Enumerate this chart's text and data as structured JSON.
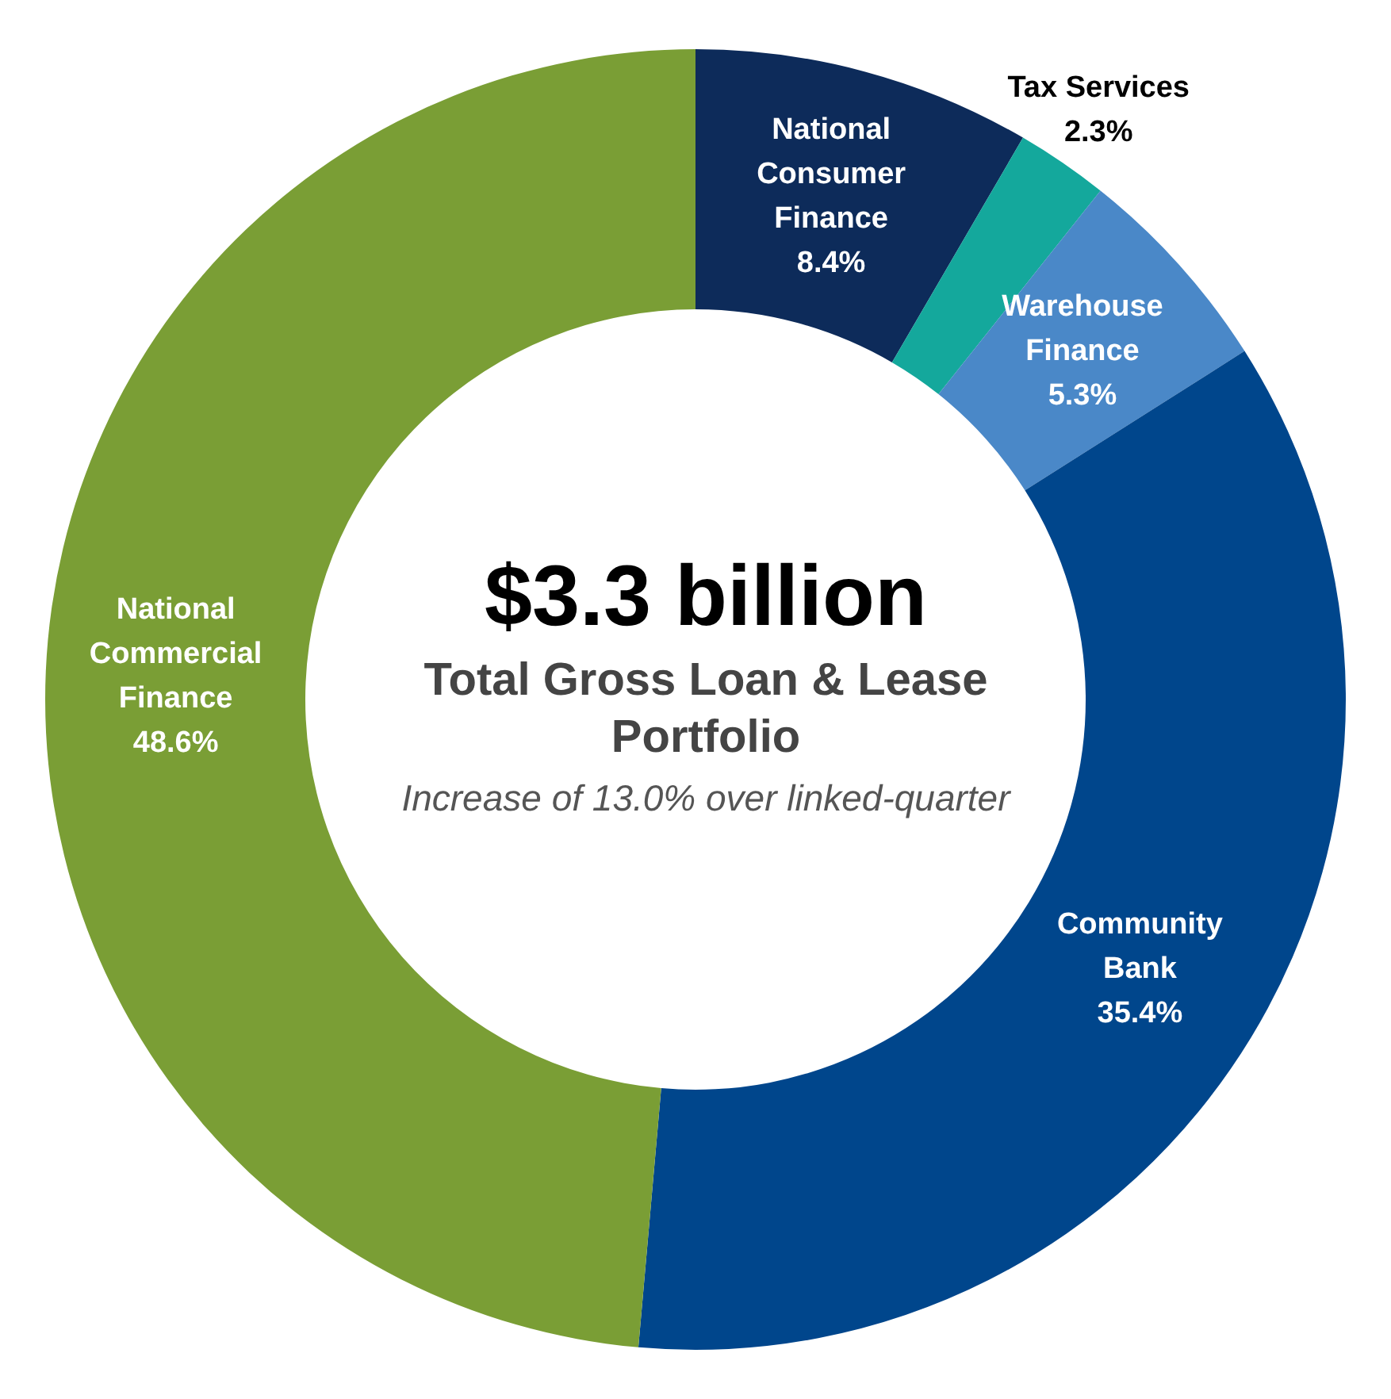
{
  "chart_data": {
    "type": "donut",
    "title": "$3.3 billion",
    "subtitle": "Total Gross Loan & Lease Portfolio",
    "annotations": [
      "Increase of 13.0% over linked-quarter"
    ],
    "categories": [
      "National Consumer Finance",
      "Tax Services",
      "Warehouse Finance",
      "Community Bank",
      "National Commercial Finance"
    ],
    "values": [
      8.4,
      2.3,
      5.3,
      35.4,
      48.6
    ],
    "colors": [
      "#0d2b5a",
      "#14a89c",
      "#4a88c8",
      "#00468c",
      "#7a9e35"
    ],
    "value_labels": [
      "8.4%",
      "2.3%",
      "5.3%",
      "35.4%",
      "48.6%"
    ],
    "legend": false
  }
}
